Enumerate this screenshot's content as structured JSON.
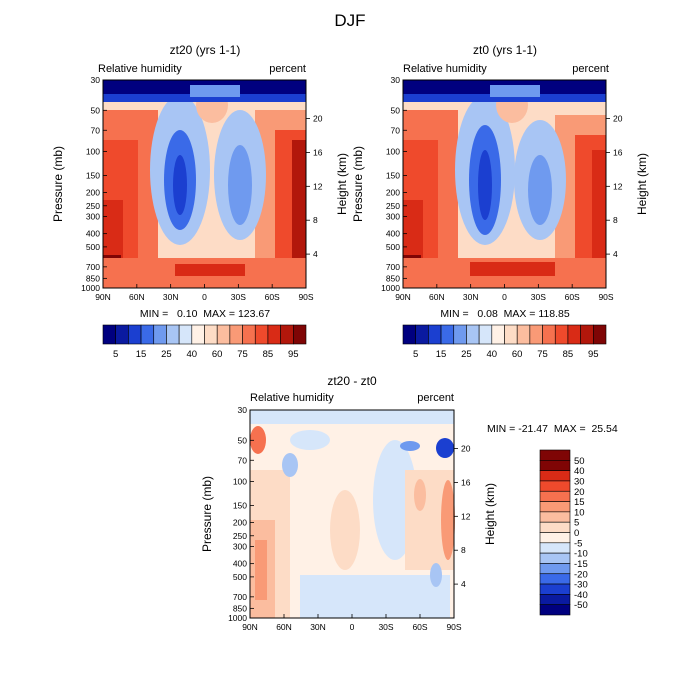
{
  "figure_title": "DJF",
  "colors": {
    "abs_scale": [
      "#00007f",
      "#0a1aa0",
      "#1b3fd0",
      "#3a6ae8",
      "#6f9aef",
      "#a8c5f4",
      "#d6e6fa",
      "#fff1e6",
      "#fddcc6",
      "#fbbd9f",
      "#f99a76",
      "#f6714f",
      "#ef4a2c",
      "#d92b16",
      "#b2170b",
      "#7f0505"
    ],
    "diff_scale": [
      "#00007f",
      "#0a1aa0",
      "#1b3fd0",
      "#3a6ae8",
      "#6f9aef",
      "#a8c5f4",
      "#d6e6fa",
      "#fff1e6",
      "#fddcc6",
      "#fbbd9f",
      "#f99a76",
      "#f6714f",
      "#ef4a2c",
      "#d92b16",
      "#7f0505"
    ]
  },
  "chart_data": [
    {
      "type": "heatmap",
      "title": "zt20 (yrs 1-1)",
      "subtitle_left": "Relative humidity",
      "subtitle_right": "percent",
      "ylabel": "Pressure (mb)",
      "ylabel_right": "Height (km)",
      "xticks": [
        "90N",
        "60N",
        "30N",
        "0",
        "30S",
        "60S",
        "90S"
      ],
      "yticks": [
        "30",
        "50",
        "70",
        "100",
        "150",
        "200",
        "250",
        "300",
        "400",
        "500",
        "700",
        "850",
        "1000"
      ],
      "yticks_right": [
        "20",
        "16",
        "12",
        "8",
        "4"
      ],
      "min_max_text": "MIN =   0.10  MAX = 123.67",
      "colorbar_labels": [
        "5",
        "15",
        "25",
        "40",
        "60",
        "75",
        "85",
        "95"
      ],
      "min": 0.1,
      "max": 123.67
    },
    {
      "type": "heatmap",
      "title": "zt0 (yrs 1-1)",
      "subtitle_left": "Relative humidity",
      "subtitle_right": "percent",
      "ylabel": "Pressure (mb)",
      "ylabel_right": "Height (km)",
      "xticks": [
        "90N",
        "60N",
        "30N",
        "0",
        "30S",
        "60S",
        "90S"
      ],
      "yticks": [
        "30",
        "50",
        "70",
        "100",
        "150",
        "200",
        "250",
        "300",
        "400",
        "500",
        "700",
        "850",
        "1000"
      ],
      "yticks_right": [
        "20",
        "16",
        "12",
        "8",
        "4"
      ],
      "min_max_text": "MIN =   0.08  MAX = 118.85",
      "colorbar_labels": [
        "5",
        "15",
        "25",
        "40",
        "60",
        "75",
        "85",
        "95"
      ],
      "min": 0.08,
      "max": 118.85
    },
    {
      "type": "heatmap",
      "title": "zt20 - zt0",
      "subtitle_left": "Relative humidity",
      "subtitle_right": "percent",
      "ylabel": "Pressure (mb)",
      "ylabel_right": "Height (km)",
      "xticks": [
        "90N",
        "60N",
        "30N",
        "0",
        "30S",
        "60S",
        "90S"
      ],
      "yticks": [
        "30",
        "50",
        "70",
        "100",
        "150",
        "200",
        "250",
        "300",
        "400",
        "500",
        "700",
        "850",
        "1000"
      ],
      "yticks_right": [
        "20",
        "16",
        "12",
        "8",
        "4"
      ],
      "min_max_text": "MIN = -21.47  MAX =  25.54",
      "colorbar_labels": [
        "50",
        "40",
        "30",
        "20",
        "15",
        "10",
        "5",
        "0",
        "-5",
        "-10",
        "-15",
        "-20",
        "-30",
        "-40",
        "-50"
      ],
      "min": -21.47,
      "max": 25.54
    }
  ]
}
